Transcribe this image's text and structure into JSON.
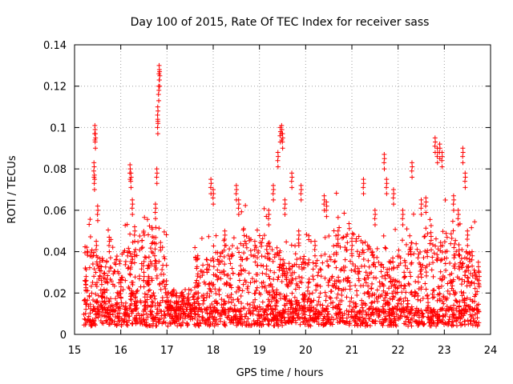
{
  "chart_data": {
    "type": "scatter",
    "title": "Day 100 of 2015, Rate Of TEC Index for receiver sass",
    "xlabel": "GPS time / hours",
    "ylabel": "ROTI / TECUs",
    "xlim": [
      15,
      24
    ],
    "ylim": [
      0,
      0.14
    ],
    "x_ticks": [
      "15",
      "16",
      "17",
      "18",
      "19",
      "20",
      "21",
      "22",
      "23",
      "24"
    ],
    "y_ticks": [
      "0",
      "0.02",
      "0.04",
      "0.06",
      "0.08",
      "0.1",
      "0.12",
      "0.14"
    ],
    "grid": true,
    "marker": "+",
    "color": "#ff0000",
    "series": [
      {
        "name": "ROTI",
        "x": [
          15.25,
          15.42,
          15.43,
          15.44,
          15.45,
          15.47,
          15.5,
          15.55,
          15.6,
          15.75,
          16.0,
          16.2,
          16.22,
          16.25,
          16.3,
          16.5,
          16.6,
          16.75,
          16.78,
          16.8,
          16.8,
          16.82,
          16.83,
          16.84,
          17.0,
          17.3,
          17.6,
          17.95,
          18.0,
          18.25,
          18.5,
          18.55,
          18.9,
          19.2,
          19.3,
          19.4,
          19.45,
          19.48,
          19.5,
          19.55,
          19.7,
          19.85,
          19.9,
          20.2,
          20.4,
          20.45,
          20.7,
          21.0,
          21.25,
          21.5,
          21.7,
          21.75,
          21.9,
          22.1,
          22.3,
          22.5,
          22.6,
          22.8,
          22.85,
          22.9,
          22.95,
          23.2,
          23.3,
          23.4,
          23.45,
          23.5,
          23.6,
          23.75
        ],
        "y": [
          0.028,
          0.083,
          0.077,
          0.101,
          0.097,
          0.045,
          0.062,
          0.035,
          0.02,
          0.047,
          0.025,
          0.082,
          0.078,
          0.065,
          0.052,
          0.03,
          0.028,
          0.063,
          0.08,
          0.104,
          0.11,
          0.12,
          0.13,
          0.127,
          0.02,
          0.012,
          0.015,
          0.075,
          0.07,
          0.05,
          0.072,
          0.065,
          0.045,
          0.06,
          0.072,
          0.088,
          0.1,
          0.101,
          0.097,
          0.065,
          0.078,
          0.05,
          0.072,
          0.045,
          0.067,
          0.064,
          0.05,
          0.045,
          0.075,
          0.06,
          0.087,
          0.075,
          0.07,
          0.06,
          0.083,
          0.065,
          0.066,
          0.095,
          0.09,
          0.092,
          0.088,
          0.067,
          0.06,
          0.09,
          0.078,
          0.05,
          0.04,
          0.03
        ]
      }
    ],
    "background_cloud": {
      "description_free": true,
      "x_range": [
        15.2,
        23.75
      ],
      "gap": [
        17.0,
        17.6
      ],
      "baseline_range": [
        0.004,
        0.012
      ],
      "band_range": [
        0.012,
        0.045
      ]
    }
  }
}
